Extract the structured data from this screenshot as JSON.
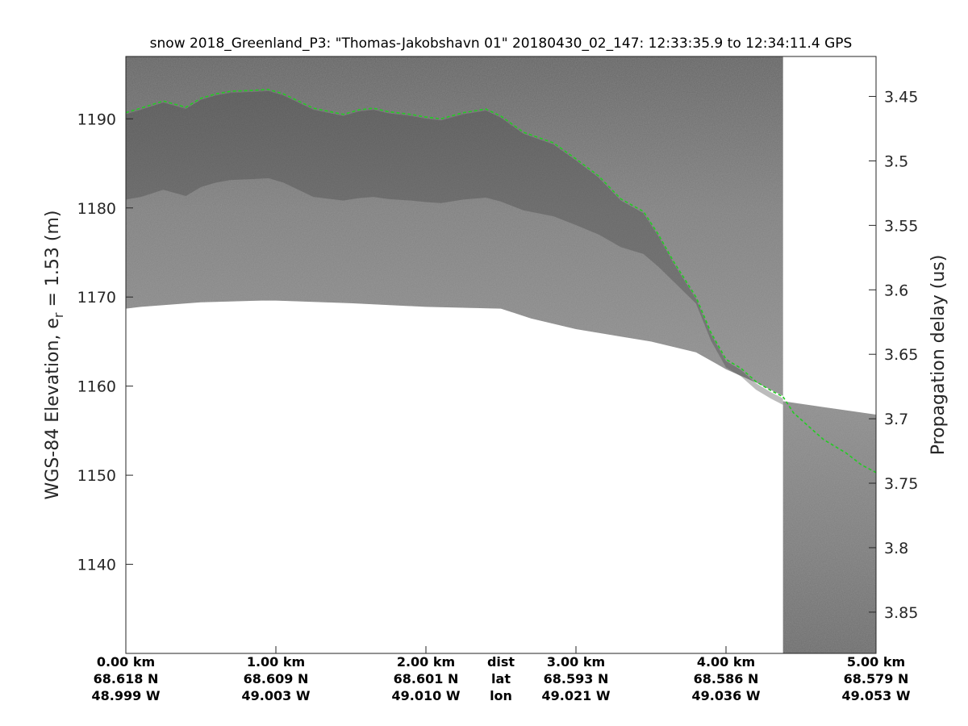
{
  "chart_data": {
    "type": "radar-echogram",
    "title": "snow 2018_Greenland_P3: \"Thomas-Jakobshavn 01\"  20180430_02_147: 12:33:35.9 to 12:34:11.4 GPS",
    "ylabel_left": "WGS-84 Elevation, e",
    "ylabel_left_subscript": "r",
    "ylabel_left_suffix": " = 1.53 (m)",
    "ylabel_right": "Propagation delay (us)",
    "xlim": [
      0,
      5.0
    ],
    "ylim_left": [
      1130,
      1197
    ],
    "ylim_right": [
      3.419,
      3.882
    ],
    "left_ticks": [
      1140,
      1150,
      1160,
      1170,
      1180,
      1190
    ],
    "right_ticks": [
      "3.45",
      "3.5",
      "3.55",
      "3.6",
      "3.65",
      "3.7",
      "3.75",
      "3.8",
      "3.85"
    ],
    "x_rows": [
      "dist",
      "lat",
      "lon"
    ],
    "x_ticks": [
      {
        "dist_km": 0,
        "dist": "0.00 km",
        "lat": "68.618 N",
        "lon": "48.999 W"
      },
      {
        "dist_km": 1,
        "dist": "1.00 km",
        "lat": "68.609 N",
        "lon": "49.003 W"
      },
      {
        "dist_km": 2,
        "dist": "2.00 km",
        "lat": "68.601 N",
        "lon": "49.010 W"
      },
      {
        "dist_km": 3,
        "dist": "3.00 km",
        "lat": "68.593 N",
        "lon": "49.021 W"
      },
      {
        "dist_km": 4,
        "dist": "4.00 km",
        "lat": "68.586 N",
        "lon": "49.036 W"
      },
      {
        "dist_km": 5,
        "dist": "5.00 km",
        "lat": "68.579 N",
        "lon": "49.053 W"
      }
    ],
    "series": [
      {
        "color": "#22cc22",
        "style": "dashed",
        "x": [
          0,
          0.1,
          0.25,
          0.4,
          0.5,
          0.6,
          0.7,
          0.85,
          0.95,
          1.05,
          1.25,
          1.45,
          1.55,
          1.65,
          1.75,
          1.9,
          2.0,
          2.1,
          2.25,
          2.4,
          2.5,
          2.65,
          2.85,
          3.0,
          3.15,
          3.3,
          3.45,
          3.55,
          3.65,
          3.8,
          3.9,
          4.0,
          4.1,
          4.2,
          4.3,
          4.38
        ],
        "y": [
          1190.7,
          1191.2,
          1192.0,
          1191.3,
          1192.3,
          1192.8,
          1193.1,
          1193.2,
          1193.3,
          1192.8,
          1191.2,
          1190.5,
          1191.0,
          1191.2,
          1190.8,
          1190.5,
          1190.2,
          1190.0,
          1190.7,
          1191.1,
          1190.3,
          1188.5,
          1187.3,
          1185.5,
          1183.6,
          1181.0,
          1179.6,
          1177.0,
          1174.0,
          1170.0,
          1166.0,
          1163.0,
          1162.0,
          1160.5,
          1159.5,
          1158.8
        ]
      },
      {
        "color": "#22cc22",
        "style": "dashed",
        "x": [
          4.38,
          4.45,
          4.55,
          4.65,
          4.8,
          4.9,
          5.0
        ],
        "y": [
          1158.8,
          1157.0,
          1155.5,
          1154.0,
          1152.5,
          1151.2,
          1150.3
        ]
      }
    ],
    "data_bottom_boundary": {
      "x": [
        0,
        0.1,
        0.5,
        0.9,
        1.0,
        1.5,
        2.0,
        2.5,
        2.7,
        3.0,
        3.5,
        3.8,
        4.0,
        4.2,
        4.38
      ],
      "y": [
        1168.7,
        1168.9,
        1169.4,
        1169.6,
        1169.6,
        1169.3,
        1168.9,
        1168.7,
        1167.6,
        1166.4,
        1165.0,
        1163.8,
        1161.9,
        1160.4,
        1158.9
      ]
    },
    "second_segment": {
      "x_start": 4.38,
      "y_top_start": 1158.3,
      "y_top_end": 1156.8
    },
    "colors": {
      "echogram_light": "#8e8e8e",
      "echogram_dark": "#555555",
      "echogram_gap": "#ffffff"
    }
  }
}
